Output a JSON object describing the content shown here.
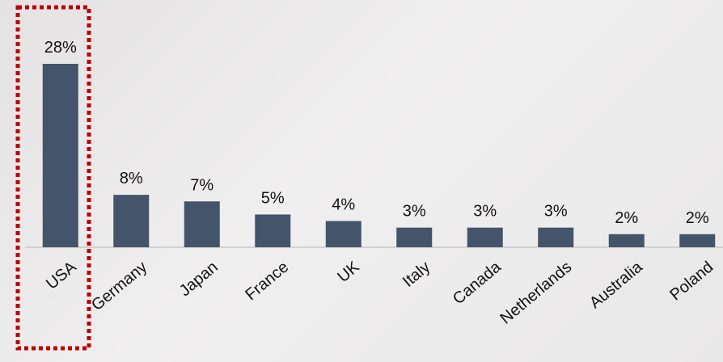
{
  "chart_data": {
    "type": "bar",
    "categories": [
      "USA",
      "Germany",
      "Japan",
      "France",
      "UK",
      "Italy",
      "Canada",
      "Netherlands",
      "Australia",
      "Poland"
    ],
    "values": [
      28,
      8,
      7,
      5,
      4,
      3,
      3,
      3,
      2,
      2
    ],
    "value_labels": [
      "28%",
      "8%",
      "7%",
      "5%",
      "4%",
      "3%",
      "3%",
      "3%",
      "2%",
      "2%"
    ],
    "color": "#44546a"
  }
}
